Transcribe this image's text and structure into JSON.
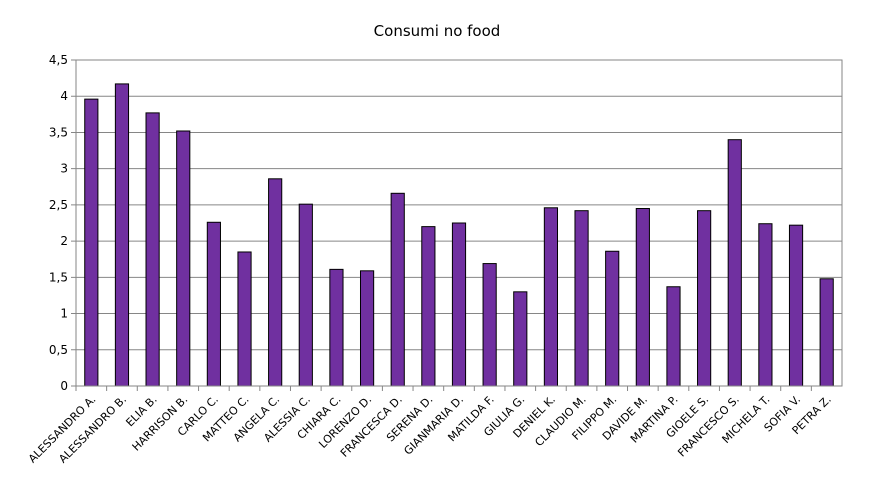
{
  "chart_data": {
    "type": "bar",
    "title": "Consumi no food",
    "xlabel": "",
    "ylabel": "",
    "ylim": [
      0,
      4.5
    ],
    "yticks": [
      "0",
      "0,5",
      "1",
      "1,5",
      "2",
      "2,5",
      "3",
      "3,5",
      "4",
      "4,5"
    ],
    "grid": true,
    "legend": "none",
    "bar_color": "#7030a0",
    "bar_edge_color": "#000000",
    "categories": [
      "ALESSANDRO A.",
      "ALESSANDRO B.",
      "ELIA B.",
      "HARRISON B.",
      "CARLO C.",
      "MATTEO C.",
      "ANGELA C.",
      "ALESSIA C.",
      "CHIARA C.",
      "LORENZO D.",
      "FRANCESCA D.",
      "SERENA D.",
      "GIANMARIA D.",
      "MATILDA F.",
      "GIULIA G.",
      "DENIEL K.",
      "CLAUDIO M.",
      "FILIPPO M.",
      "DAVIDE M.",
      "MARTINA P.",
      "GIOELE S.",
      "FRANCESCO S.",
      "MICHELA T.",
      "SOFIA V.",
      "PETRA Z."
    ],
    "values": [
      3.96,
      4.17,
      3.77,
      3.52,
      2.26,
      1.85,
      2.86,
      2.51,
      1.61,
      1.59,
      2.66,
      2.2,
      2.25,
      1.69,
      1.3,
      2.46,
      2.42,
      1.86,
      2.45,
      1.37,
      2.42,
      3.4,
      2.24,
      2.22,
      1.48
    ]
  }
}
